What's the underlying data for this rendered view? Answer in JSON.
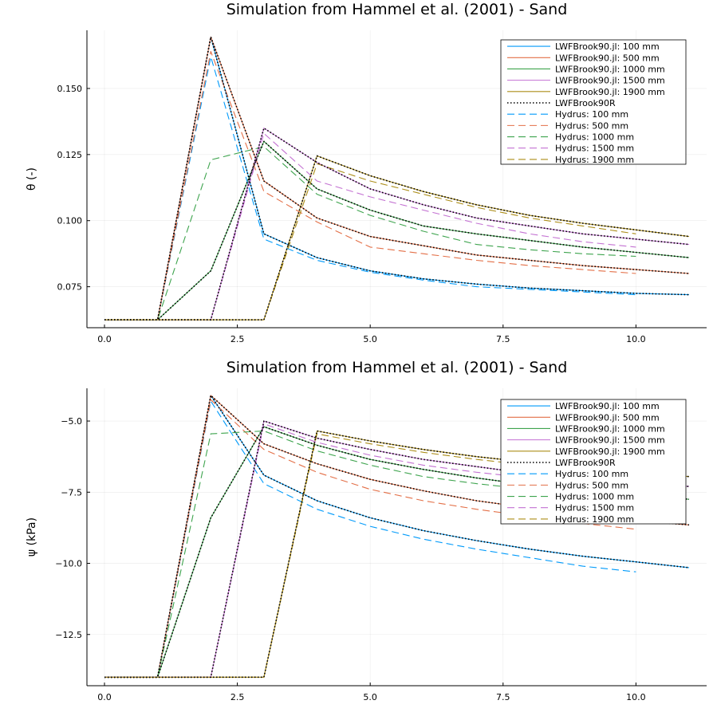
{
  "colors": {
    "c100": "#009AFA",
    "c500": "#E36F47",
    "c1000": "#3EA44E",
    "c1500": "#C371D2",
    "c1900": "#AC8D18",
    "ref": "#000000"
  },
  "legend": [
    {
      "label": "LWFBrook90.jl: 100 mm",
      "color": "c100",
      "style": "solid"
    },
    {
      "label": "LWFBrook90.jl: 500 mm",
      "color": "c500",
      "style": "solid"
    },
    {
      "label": "LWFBrook90.jl: 1000 mm",
      "color": "c1000",
      "style": "solid"
    },
    {
      "label": "LWFBrook90.jl: 1500 mm",
      "color": "c1500",
      "style": "solid"
    },
    {
      "label": "LWFBrook90.jl: 1900 mm",
      "color": "c1900",
      "style": "solid"
    },
    {
      "label": "LWFBrook90R",
      "color": "ref",
      "style": "dotted"
    },
    {
      "label": "Hydrus: 100 mm",
      "color": "c100",
      "style": "dashed"
    },
    {
      "label": "Hydrus: 500 mm",
      "color": "c500",
      "style": "dashed"
    },
    {
      "label": "Hydrus: 1000 mm",
      "color": "c1000",
      "style": "dashed"
    },
    {
      "label": "Hydrus: 1500 mm",
      "color": "c1500",
      "style": "dashed"
    },
    {
      "label": "Hydrus: 1900 mm",
      "color": "c1900",
      "style": "dashed"
    }
  ],
  "chart_data": [
    {
      "type": "line",
      "title": "Simulation from Hammel et al. (2001) - Sand",
      "xlabel": "",
      "ylabel": "θ (-)",
      "xlim": [
        -0.33,
        11.33
      ],
      "ylim": [
        0.0595,
        0.172
      ],
      "xticks": [
        0,
        2.5,
        5,
        7.5,
        10
      ],
      "xtick_labels": [
        "0.0",
        "2.5",
        "5.0",
        "7.5",
        "10.0"
      ],
      "yticks": [
        0.075,
        0.1,
        0.125,
        0.15
      ],
      "ytick_labels": [
        "0.075",
        "0.100",
        "0.125",
        "0.150"
      ],
      "grid": true,
      "legend_position": "top-right",
      "series": [
        {
          "name": "LWFBrook90.jl: 100 mm",
          "color": "c100",
          "style": "solid",
          "x": [
            0,
            1,
            2,
            3,
            4,
            5,
            6,
            7,
            8,
            9,
            10,
            11
          ],
          "y": [
            0.0625,
            0.0625,
            0.1695,
            0.095,
            0.086,
            0.081,
            0.078,
            0.076,
            0.0745,
            0.0735,
            0.0725,
            0.072
          ]
        },
        {
          "name": "LWFBrook90.jl: 500 mm",
          "color": "c500",
          "style": "solid",
          "x": [
            0,
            1,
            2,
            3,
            4,
            5,
            6,
            7,
            8,
            9,
            10,
            11
          ],
          "y": [
            0.0625,
            0.0625,
            0.1695,
            0.115,
            0.101,
            0.094,
            0.0905,
            0.087,
            0.085,
            0.083,
            0.0815,
            0.08
          ]
        },
        {
          "name": "LWFBrook90.jl: 1000 mm",
          "color": "c1000",
          "style": "solid",
          "x": [
            0,
            1,
            2,
            3,
            4,
            5,
            6,
            7,
            8,
            9,
            10,
            11
          ],
          "y": [
            0.0625,
            0.0625,
            0.081,
            0.13,
            0.112,
            0.104,
            0.098,
            0.095,
            0.0925,
            0.09,
            0.088,
            0.086
          ]
        },
        {
          "name": "LWFBrook90.jl: 1500 mm",
          "color": "c1500",
          "style": "solid",
          "x": [
            0,
            1,
            2,
            3,
            4,
            5,
            6,
            7,
            8,
            9,
            10,
            11
          ],
          "y": [
            0.0625,
            0.0625,
            0.0625,
            0.135,
            0.122,
            0.112,
            0.106,
            0.101,
            0.098,
            0.095,
            0.093,
            0.091
          ]
        },
        {
          "name": "LWFBrook90.jl: 1900 mm",
          "color": "c1900",
          "style": "solid",
          "x": [
            0,
            1,
            2,
            3,
            4,
            5,
            6,
            7,
            8,
            9,
            10,
            11
          ],
          "y": [
            0.0625,
            0.0625,
            0.0625,
            0.0625,
            0.1245,
            0.117,
            0.111,
            0.106,
            0.102,
            0.099,
            0.0965,
            0.094
          ]
        },
        {
          "name": "LWFBrook90R",
          "color": "ref",
          "style": "dotted",
          "x": [
            0,
            1,
            2,
            3,
            4,
            5,
            6,
            7,
            8,
            9,
            10,
            11
          ],
          "y": [
            0.0625,
            0.0625,
            0.1695,
            0.095,
            0.086,
            0.081,
            0.078,
            0.076,
            0.0745,
            0.0735,
            0.0725,
            0.072
          ]
        },
        {
          "name": "",
          "color": "ref",
          "style": "dotted",
          "x": [
            0,
            1,
            2,
            3,
            4,
            5,
            6,
            7,
            8,
            9,
            10,
            11
          ],
          "y": [
            0.0625,
            0.0625,
            0.1695,
            0.115,
            0.101,
            0.094,
            0.0905,
            0.087,
            0.085,
            0.083,
            0.0815,
            0.08
          ]
        },
        {
          "name": "",
          "color": "ref",
          "style": "dotted",
          "x": [
            0,
            1,
            2,
            3,
            4,
            5,
            6,
            7,
            8,
            9,
            10,
            11
          ],
          "y": [
            0.0625,
            0.0625,
            0.081,
            0.13,
            0.112,
            0.104,
            0.098,
            0.095,
            0.0925,
            0.09,
            0.088,
            0.086
          ]
        },
        {
          "name": "",
          "color": "ref",
          "style": "dotted",
          "x": [
            0,
            1,
            2,
            3,
            4,
            5,
            6,
            7,
            8,
            9,
            10,
            11
          ],
          "y": [
            0.0625,
            0.0625,
            0.0625,
            0.135,
            0.122,
            0.112,
            0.106,
            0.101,
            0.098,
            0.095,
            0.093,
            0.091
          ]
        },
        {
          "name": "",
          "color": "ref",
          "style": "dotted",
          "x": [
            0,
            1,
            2,
            3,
            4,
            5,
            6,
            7,
            8,
            9,
            10,
            11
          ],
          "y": [
            0.0625,
            0.0625,
            0.0625,
            0.0625,
            0.1245,
            0.117,
            0.111,
            0.106,
            0.102,
            0.099,
            0.0965,
            0.094
          ]
        },
        {
          "name": "Hydrus: 100 mm",
          "color": "c100",
          "style": "dashed",
          "x": [
            0,
            1,
            2,
            3,
            4,
            5,
            6,
            7,
            8,
            9,
            10
          ],
          "y": [
            0.0625,
            0.0625,
            0.162,
            0.093,
            0.085,
            0.0805,
            0.0775,
            0.075,
            0.074,
            0.073,
            0.072
          ]
        },
        {
          "name": "Hydrus: 500 mm",
          "color": "c500",
          "style": "dashed",
          "x": [
            0,
            1,
            2,
            3,
            4,
            5,
            6,
            7,
            8,
            9,
            10
          ],
          "y": [
            0.0625,
            0.0625,
            0.164,
            0.111,
            0.0995,
            0.09,
            0.0875,
            0.085,
            0.083,
            0.0815,
            0.08
          ]
        },
        {
          "name": "Hydrus: 1000 mm",
          "color": "c1000",
          "style": "dashed",
          "x": [
            0,
            1,
            2,
            3,
            4,
            5,
            6,
            7,
            8,
            9,
            10
          ],
          "y": [
            0.0625,
            0.0625,
            0.123,
            0.128,
            0.11,
            0.102,
            0.096,
            0.091,
            0.089,
            0.0875,
            0.0865
          ]
        },
        {
          "name": "Hydrus: 1500 mm",
          "color": "c1500",
          "style": "dashed",
          "x": [
            0,
            1,
            2,
            3,
            4,
            5,
            6,
            7,
            8,
            9,
            10
          ],
          "y": [
            0.0625,
            0.0625,
            0.0625,
            0.133,
            0.115,
            0.109,
            0.104,
            0.099,
            0.095,
            0.092,
            0.09
          ]
        },
        {
          "name": "Hydrus: 1900 mm",
          "color": "c1900",
          "style": "dashed",
          "x": [
            0,
            1,
            2,
            3,
            4,
            5,
            6,
            7,
            8,
            9,
            10
          ],
          "y": [
            0.0625,
            0.0625,
            0.0625,
            0.0625,
            0.1215,
            0.115,
            0.11,
            0.105,
            0.101,
            0.098,
            0.095
          ]
        }
      ]
    },
    {
      "type": "line",
      "title": "Simulation from Hammel et al. (2001) - Sand",
      "xlabel": "",
      "ylabel": "ψ (kPa)",
      "xlim": [
        -0.33,
        11.33
      ],
      "ylim": [
        -14.3,
        -3.85
      ],
      "xticks": [
        0,
        2.5,
        5,
        7.5,
        10
      ],
      "xtick_labels": [
        "0.0",
        "2.5",
        "5.0",
        "7.5",
        "10.0"
      ],
      "yticks": [
        -12.5,
        -10.0,
        -7.5,
        -5.0
      ],
      "ytick_labels": [
        "−12.5",
        "−10.0",
        "−7.5",
        "−5.0"
      ],
      "grid": true,
      "legend_position": "top-right",
      "series": [
        {
          "name": "LWFBrook90.jl: 100 mm",
          "color": "c100",
          "style": "solid",
          "x": [
            0,
            1,
            2,
            3,
            4,
            5,
            6,
            7,
            8,
            9,
            10,
            11
          ],
          "y": [
            -14,
            -14,
            -4.1,
            -6.9,
            -7.8,
            -8.4,
            -8.85,
            -9.2,
            -9.5,
            -9.75,
            -9.95,
            -10.15
          ]
        },
        {
          "name": "LWFBrook90.jl: 500 mm",
          "color": "c500",
          "style": "solid",
          "x": [
            0,
            1,
            2,
            3,
            4,
            5,
            6,
            7,
            8,
            9,
            10,
            11
          ],
          "y": [
            -14,
            -14,
            -4.1,
            -5.8,
            -6.5,
            -7.05,
            -7.45,
            -7.8,
            -8.05,
            -8.3,
            -8.5,
            -8.65
          ]
        },
        {
          "name": "LWFBrook90.jl: 1000 mm",
          "color": "c1000",
          "style": "solid",
          "x": [
            0,
            1,
            2,
            3,
            4,
            5,
            6,
            7,
            8,
            9,
            10,
            11
          ],
          "y": [
            -14,
            -14,
            -8.4,
            -5.2,
            -5.85,
            -6.35,
            -6.7,
            -7.0,
            -7.25,
            -7.45,
            -7.6,
            -7.75
          ]
        },
        {
          "name": "LWFBrook90.jl: 1500 mm",
          "color": "c1500",
          "style": "solid",
          "x": [
            0,
            1,
            2,
            3,
            4,
            5,
            6,
            7,
            8,
            9,
            10,
            11
          ],
          "y": [
            -14,
            -14,
            -14,
            -5.0,
            -5.6,
            -6.0,
            -6.35,
            -6.6,
            -6.85,
            -7.05,
            -7.2,
            -7.3
          ]
        },
        {
          "name": "LWFBrook90.jl: 1900 mm",
          "color": "c1900",
          "style": "solid",
          "x": [
            0,
            1,
            2,
            3,
            4,
            5,
            6,
            7,
            8,
            9,
            10,
            11
          ],
          "y": [
            -14,
            -14,
            -14,
            -14,
            -5.35,
            -5.7,
            -6.0,
            -6.25,
            -6.45,
            -6.65,
            -6.8,
            -6.95
          ]
        },
        {
          "name": "LWFBrook90R",
          "color": "ref",
          "style": "dotted",
          "x": [
            0,
            1,
            2,
            3,
            4,
            5,
            6,
            7,
            8,
            9,
            10,
            11
          ],
          "y": [
            -14,
            -14,
            -4.1,
            -6.9,
            -7.8,
            -8.4,
            -8.85,
            -9.2,
            -9.5,
            -9.75,
            -9.95,
            -10.15
          ]
        },
        {
          "name": "",
          "color": "ref",
          "style": "dotted",
          "x": [
            0,
            1,
            2,
            3,
            4,
            5,
            6,
            7,
            8,
            9,
            10,
            11
          ],
          "y": [
            -14,
            -14,
            -4.1,
            -5.8,
            -6.5,
            -7.05,
            -7.45,
            -7.8,
            -8.05,
            -8.3,
            -8.5,
            -8.65
          ]
        },
        {
          "name": "",
          "color": "ref",
          "style": "dotted",
          "x": [
            0,
            1,
            2,
            3,
            4,
            5,
            6,
            7,
            8,
            9,
            10,
            11
          ],
          "y": [
            -14,
            -14,
            -8.4,
            -5.2,
            -5.85,
            -6.35,
            -6.7,
            -7.0,
            -7.25,
            -7.45,
            -7.6,
            -7.75
          ]
        },
        {
          "name": "",
          "color": "ref",
          "style": "dotted",
          "x": [
            0,
            1,
            2,
            3,
            4,
            5,
            6,
            7,
            8,
            9,
            10,
            11
          ],
          "y": [
            -14,
            -14,
            -14,
            -5.0,
            -5.6,
            -6.0,
            -6.35,
            -6.6,
            -6.85,
            -7.05,
            -7.2,
            -7.3
          ]
        },
        {
          "name": "",
          "color": "ref",
          "style": "dotted",
          "x": [
            0,
            1,
            2,
            3,
            4,
            5,
            6,
            7,
            8,
            9,
            10,
            11
          ],
          "y": [
            -14,
            -14,
            -14,
            -14,
            -5.35,
            -5.7,
            -6.0,
            -6.25,
            -6.45,
            -6.65,
            -6.8,
            -6.95
          ]
        },
        {
          "name": "Hydrus: 100 mm",
          "color": "c100",
          "style": "dashed",
          "x": [
            0,
            1,
            2,
            3,
            4,
            5,
            6,
            7,
            8,
            9,
            10
          ],
          "y": [
            -14,
            -14,
            -4.3,
            -7.2,
            -8.1,
            -8.7,
            -9.15,
            -9.5,
            -9.8,
            -10.1,
            -10.3
          ]
        },
        {
          "name": "Hydrus: 500 mm",
          "color": "c500",
          "style": "dashed",
          "x": [
            0,
            1,
            2,
            3,
            4,
            5,
            6,
            7,
            8,
            9,
            10
          ],
          "y": [
            -14,
            -14,
            -4.25,
            -6.0,
            -6.8,
            -7.4,
            -7.8,
            -8.1,
            -8.35,
            -8.6,
            -8.8
          ]
        },
        {
          "name": "Hydrus: 1000 mm",
          "color": "c1000",
          "style": "dashed",
          "x": [
            0,
            1,
            2,
            3,
            4,
            5,
            6,
            7,
            8,
            9,
            10
          ],
          "y": [
            -14,
            -14,
            -5.45,
            -5.35,
            -6.05,
            -6.55,
            -6.95,
            -7.2,
            -7.4,
            -7.55,
            -7.65
          ]
        },
        {
          "name": "Hydrus: 1500 mm",
          "color": "c1500",
          "style": "dashed",
          "x": [
            0,
            1,
            2,
            3,
            4,
            5,
            6,
            7,
            8,
            9,
            10
          ],
          "y": [
            -14,
            -14,
            -14,
            -5.1,
            -5.75,
            -6.2,
            -6.55,
            -6.8,
            -7.0,
            -7.15,
            -7.3
          ]
        },
        {
          "name": "Hydrus: 1900 mm",
          "color": "c1900",
          "style": "dashed",
          "x": [
            0,
            1,
            2,
            3,
            4,
            5,
            6,
            7,
            8,
            9,
            10
          ],
          "y": [
            -14,
            -14,
            -14,
            -14,
            -5.45,
            -5.8,
            -6.1,
            -6.35,
            -6.55,
            -6.7,
            -6.85
          ]
        }
      ]
    }
  ]
}
